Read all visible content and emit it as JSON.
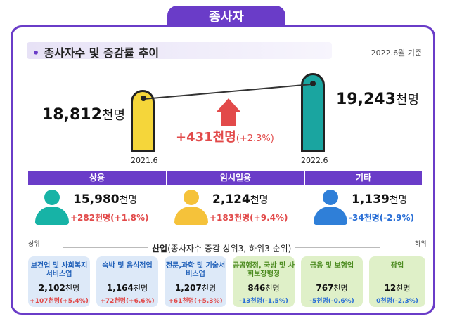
{
  "header": {
    "title": "종사자"
  },
  "section": {
    "subtitle": "종사자수 및 증감률 추이",
    "date_note": "2022.6월 기준"
  },
  "comparison": {
    "left": {
      "value": "18,812",
      "unit": "천명",
      "period": "2021.6"
    },
    "right": {
      "value": "19,243",
      "unit": "천명",
      "period": "2022.6"
    },
    "change_value": "+431천명",
    "change_pct": "(+2.3%)"
  },
  "categories": [
    {
      "name": "상용",
      "value": "15,980",
      "unit": "천명",
      "change": "+282천명(+1.8%)",
      "color": "#17b3a6"
    },
    {
      "name": "임시일용",
      "value": "2,124",
      "unit": "천명",
      "change": "+183천명(+9.4%)",
      "color": "#f5c23a"
    },
    {
      "name": "기타",
      "value": "1,139",
      "unit": "천명",
      "change": "-34천명(-2.9%)",
      "color": "#2f7fd8"
    }
  ],
  "industry": {
    "title_bold": "산업",
    "title_rest": "(종사자수 증감 상위3, 하위3 순위)",
    "upper_label": "상위",
    "lower_label": "하위",
    "items": [
      {
        "name": "보건업 및 사회복지 서비스업",
        "value": "2,102",
        "unit": "천명",
        "change": "+107천명(+5.4%)"
      },
      {
        "name": "숙박 및 음식점업",
        "value": "1,164",
        "unit": "천명",
        "change": "+72천명(+6.6%)"
      },
      {
        "name": "전문,과학 및 기술서비스업",
        "value": "1,207",
        "unit": "천명",
        "change": "+61천명(+5.3%)"
      },
      {
        "name": "공공행정, 국방 및 사회보장행정",
        "value": "846",
        "unit": "천명",
        "change": "-13천명(-1.5%)"
      },
      {
        "name": "금융 및 보험업",
        "value": "767",
        "unit": "천명",
        "change": "-5천명(-0.6%)"
      },
      {
        "name": "광업",
        "value": "12",
        "unit": "천명",
        "change": "0천명(-2.3%)"
      }
    ]
  }
}
